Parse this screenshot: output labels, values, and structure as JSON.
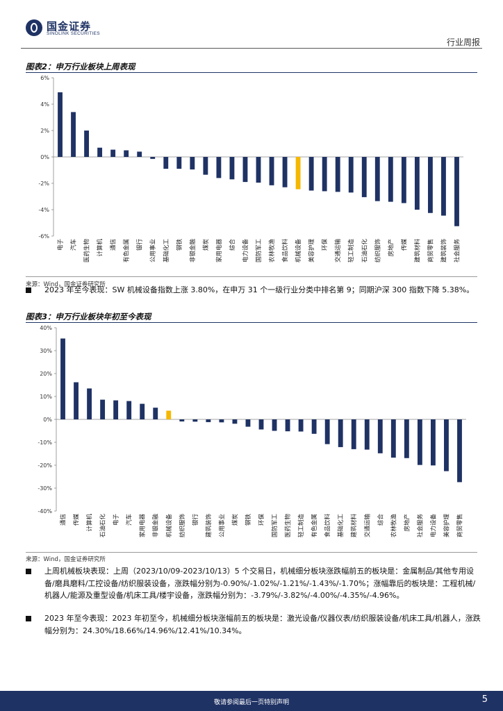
{
  "header": {
    "logo_cn": "国金证券",
    "logo_en": "SINOLINK SECURITIES",
    "report_type": "行业周报"
  },
  "figure2": {
    "title": "图表2：申万行业板块上周表现",
    "source": "来源：Wind，国金证券研究所"
  },
  "figure3": {
    "title": "图表3：申万行业板块年初至今表现",
    "source": "来源：Wind，国金证券研究所"
  },
  "bullets": {
    "b1": "2023 年至今表现：SW 机械设备指数上涨 3.80%，在申万 31 个一级行业分类中排名第 9；同期沪深 300 指数下降 5.38%。",
    "b2": "上周机械板块表现：上周（2023/10/09-2023/10/13）5 个交易日，机械细分板块涨跌幅前五的板块是：金属制品/其他专用设备/磨具磨料/工控设备/纺织服装设备，涨跌幅分别为-0.90%/-1.02%/-1.21%/-1.43%/-1.70%；涨幅靠后的板块是：工程机械/机器人/能源及重型设备/机床工具/楼宇设备，涨跌幅分别为：-3.79%/-3.82%/-4.00%/-4.35%/-4.96%。",
    "b3": "2023 年至今表现：2023 年初至今，机械细分板块涨幅前五的板块是：激光设备/仪器仪表/纺织服装设备/机床工具/机器人，涨跌幅分别为：24.30%/18.66%/14.96%/12.41%/10.34%。"
  },
  "footer": {
    "disclaimer": "敬请参阅最后一页特别声明",
    "page": "5"
  },
  "colors": {
    "bar": "#1f3264",
    "highlight": "#f5b800",
    "footer": "#1f3264"
  },
  "chart_data": [
    {
      "type": "bar",
      "categories": [
        "电子",
        "汽车",
        "医药生物",
        "计算机",
        "通信",
        "有色金属",
        "银行",
        "公用事业",
        "基础化工",
        "钢铁",
        "非银金融",
        "煤炭",
        "家用电器",
        "综合",
        "电力设备",
        "国防军工",
        "农林牧渔",
        "食品饮料",
        "机械设备",
        "美容护理",
        "环保",
        "交通运输",
        "轻工制造",
        "石油石化",
        "纺织服饰",
        "房地产",
        "传媒",
        "建筑材料",
        "商贸零售",
        "建筑装饰",
        "社会服务"
      ],
      "values": [
        4.9,
        3.4,
        2.0,
        0.7,
        0.55,
        0.5,
        0.4,
        -0.15,
        -0.9,
        -0.9,
        -0.95,
        -1.35,
        -1.6,
        -1.7,
        -1.9,
        -1.95,
        -2.15,
        -2.3,
        -2.45,
        -2.55,
        -2.6,
        -2.65,
        -2.7,
        -3.05,
        -3.35,
        -3.4,
        -3.5,
        -4.0,
        -4.25,
        -4.45,
        -5.25
      ],
      "highlight": "机械设备",
      "ylim": [
        -6,
        6
      ],
      "yticks": [
        6,
        4,
        2,
        0,
        -2,
        -4,
        -6
      ],
      "ytick_labels": [
        "6%",
        "4%",
        "2%",
        "0%",
        "-2%",
        "-4%",
        "-6%"
      ]
    },
    {
      "type": "bar",
      "categories": [
        "通信",
        "传媒",
        "计算机",
        "石油石化",
        "电子",
        "汽车",
        "家用电器",
        "非银金融",
        "机械设备",
        "纺织服饰",
        "银行",
        "建筑装饰",
        "公用事业",
        "煤炭",
        "钢铁",
        "环保",
        "国防军工",
        "医药生物",
        "轻工制造",
        "有色金属",
        "食品饮料",
        "基础化工",
        "建筑材料",
        "交通运输",
        "综合",
        "农林牧渔",
        "房地产",
        "社会服务",
        "电力设备",
        "美容护理",
        "商贸零售"
      ],
      "values": [
        35.3,
        16.2,
        13.5,
        8.6,
        8.3,
        8.0,
        6.8,
        5.1,
        3.8,
        -0.9,
        -1.0,
        -1.2,
        -1.3,
        -1.9,
        -3.2,
        -4.4,
        -5.0,
        -5.2,
        -5.3,
        -6.3,
        -10.8,
        -12.1,
        -13.0,
        -13.2,
        -14.8,
        -16.7,
        -16.9,
        -19.9,
        -20.1,
        -22.6,
        -27.4
      ],
      "highlight": "机械设备",
      "ylim": [
        -40,
        40
      ],
      "yticks": [
        40,
        30,
        20,
        10,
        0,
        -10,
        -20,
        -30,
        -40
      ],
      "ytick_labels": [
        "40%",
        "30%",
        "20%",
        "10%",
        "0%",
        "-10%",
        "-20%",
        "-30%",
        "-40%"
      ]
    }
  ]
}
